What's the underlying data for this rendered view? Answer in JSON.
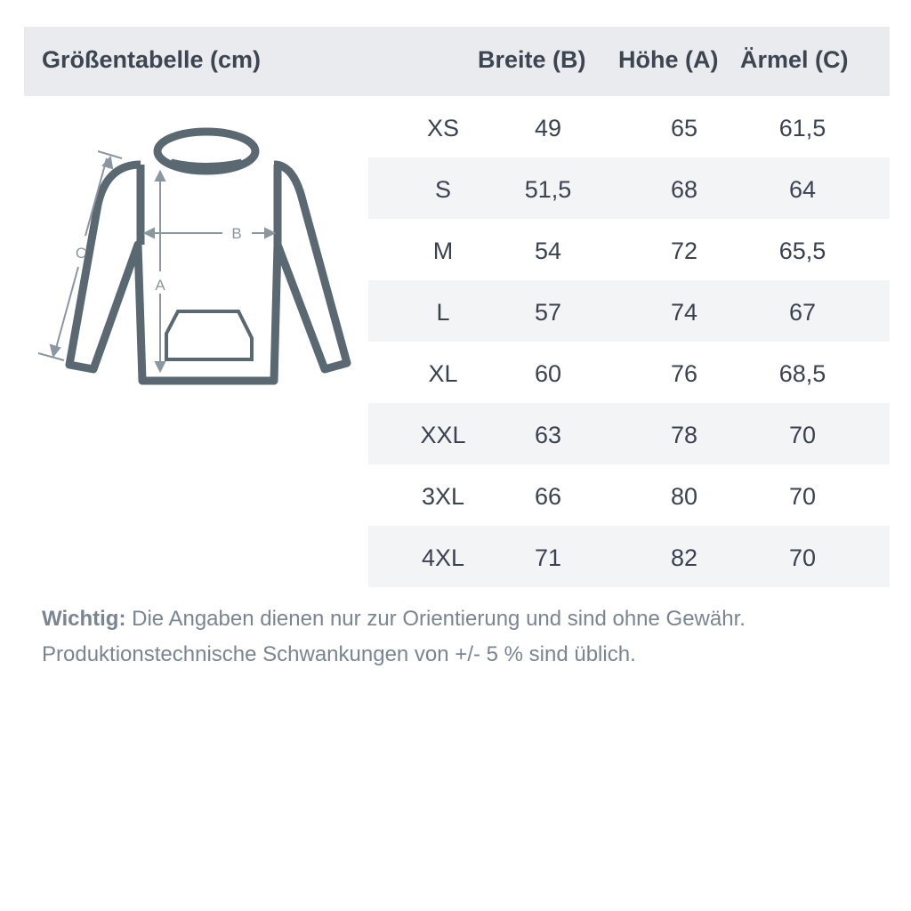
{
  "header": {
    "title": "Größentabelle (cm)",
    "columns": [
      "Breite (B)",
      "Höhe (A)",
      "Ärmel (C)"
    ]
  },
  "diagram": {
    "labels": {
      "a": "A",
      "b": "B",
      "c": "C"
    },
    "stroke_color": "#5a6872",
    "arrow_color": "#8a96a0"
  },
  "rows": [
    {
      "size": "XS",
      "breite": "49",
      "hoehe": "65",
      "aermel": "61,5"
    },
    {
      "size": "S",
      "breite": "51,5",
      "hoehe": "68",
      "aermel": "64"
    },
    {
      "size": "M",
      "breite": "54",
      "hoehe": "72",
      "aermel": "65,5"
    },
    {
      "size": "L",
      "breite": "57",
      "hoehe": "74",
      "aermel": "67"
    },
    {
      "size": "XL",
      "breite": "60",
      "hoehe": "76",
      "aermel": "68,5"
    },
    {
      "size": "XXL",
      "breite": "63",
      "hoehe": "78",
      "aermel": "70"
    },
    {
      "size": "3XL",
      "breite": "66",
      "hoehe": "80",
      "aermel": "70"
    },
    {
      "size": "4XL",
      "breite": "71",
      "hoehe": "82",
      "aermel": "70"
    }
  ],
  "note": {
    "label": "Wichtig:",
    "line1": " Die Angaben dienen nur zur Orientierung und sind ohne Gewähr.",
    "line2": "Produktionstechnische Schwankungen von +/- 5 % sind üblich."
  }
}
